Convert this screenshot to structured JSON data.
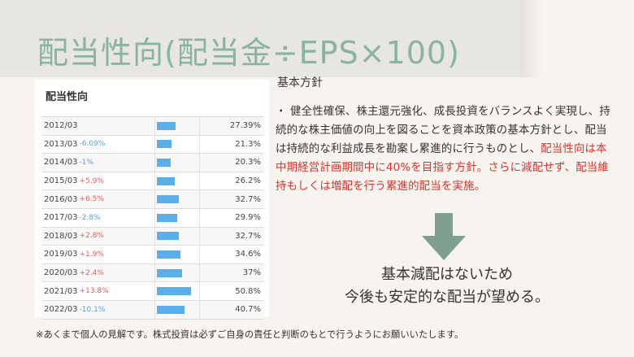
{
  "title": "配当性向(配当金÷EPS×100)",
  "panel": {
    "heading": "配当性向",
    "rows": [
      {
        "year": "2012/03",
        "change": "",
        "dir": "",
        "value": "27.39%",
        "ratio": 27.39
      },
      {
        "year": "2013/03",
        "change": "-6.09%",
        "dir": "neg",
        "value": "21.3%",
        "ratio": 21.3
      },
      {
        "year": "2014/03",
        "change": "-1%",
        "dir": "neg",
        "value": "20.3%",
        "ratio": 20.3
      },
      {
        "year": "2015/03",
        "change": "+5.9%",
        "dir": "pos",
        "value": "26.2%",
        "ratio": 26.2
      },
      {
        "year": "2016/03",
        "change": "+6.5%",
        "dir": "pos",
        "value": "32.7%",
        "ratio": 32.7
      },
      {
        "year": "2017/03",
        "change": "-2.8%",
        "dir": "neg",
        "value": "29.9%",
        "ratio": 29.9
      },
      {
        "year": "2018/03",
        "change": "+2.8%",
        "dir": "pos",
        "value": "32.7%",
        "ratio": 32.7
      },
      {
        "year": "2019/03",
        "change": "+1.9%",
        "dir": "pos",
        "value": "34.6%",
        "ratio": 34.6
      },
      {
        "year": "2020/03",
        "change": "+2.4%",
        "dir": "pos",
        "value": "37%",
        "ratio": 37
      },
      {
        "year": "2021/03",
        "change": "+13.8%",
        "dir": "pos",
        "value": "50.8%",
        "ratio": 50.8
      },
      {
        "year": "2022/03",
        "change": "-10.1%",
        "dir": "neg",
        "value": "40.7%",
        "ratio": 40.7
      }
    ]
  },
  "policy": {
    "heading": "基本方針",
    "text_normal": "・ 健全性確保、株主還元強化、成長投資をバランスよく実現し、持続的な株主価値の向上を図ることを資本政策の基本方針とし、配当は持続的な利益成長を勘案し累進的に行うものとし、",
    "text_red": "配当性向は本中期経営計画期間中に40%を目指す方針。さらに減配せず、配当維持もしくは増配を行う累進的配当を実施。"
  },
  "conclusion": {
    "line1": "基本減配はないため",
    "line2": "今後も安定的な配当が望める。"
  },
  "footnote": "※あくまで個人の見解です。株式投資は必ずご自身の責任と判断のもとで行うようにお願いいたします。",
  "colors": {
    "title": "#8ab3a0",
    "bar": "#5aafea",
    "arrow": "#7fa08f",
    "highlight": "#e0302a",
    "positive_change": "#e06060",
    "negative_change": "#5a9fe0"
  }
}
